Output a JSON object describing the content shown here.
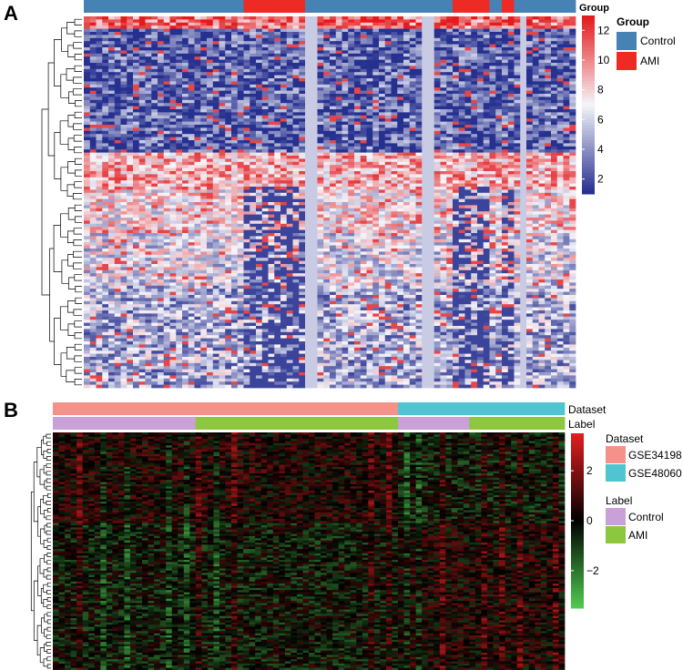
{
  "chart_data": [
    {
      "panel_label": "A",
      "type": "heatmap",
      "annotation_title": "Group",
      "legend_title": "Group",
      "groups": [
        {
          "name": "Control",
          "color": "#4682B4"
        },
        {
          "name": "AMI",
          "color": "#EE2A24"
        }
      ],
      "column_groups": [
        {
          "label": "Control",
          "count": 26
        },
        {
          "label": "AMI",
          "count": 10
        },
        {
          "label": "Control",
          "count": 24
        },
        {
          "label": "AMI",
          "count": 6
        },
        {
          "label": "Control",
          "count": 2
        },
        {
          "label": "AMI",
          "count": 2
        },
        {
          "label": "Control",
          "count": 10
        }
      ],
      "n_rows": 120,
      "gray_columns": [
        36,
        37,
        55,
        56,
        71
      ],
      "colorbar": {
        "range": [
          1,
          13
        ],
        "ticks": [
          2,
          4,
          6,
          8,
          10,
          12
        ],
        "colors": [
          "#26308F",
          "#F5F5FA",
          "#E41A1C"
        ]
      }
    },
    {
      "panel_label": "B",
      "type": "heatmap",
      "annotations": [
        {
          "name": "Dataset",
          "segments": [
            {
              "label": "GSE34198",
              "count": 58,
              "color": "#F4928A"
            },
            {
              "label": "GSE48060",
              "count": 28,
              "color": "#4FC5D1"
            }
          ]
        },
        {
          "name": "Label",
          "segments": [
            {
              "label": "Control",
              "count": 24,
              "color": "#C9A0D8"
            },
            {
              "label": "AMI",
              "count": 34,
              "color": "#8DC63F"
            },
            {
              "label": "Control",
              "count": 12,
              "color": "#C9A0D8"
            },
            {
              "label": "AMI",
              "count": 16,
              "color": "#8DC63F"
            }
          ]
        }
      ],
      "legend": [
        {
          "title": "Dataset",
          "items": [
            {
              "name": "GSE34198",
              "color": "#F4928A"
            },
            {
              "name": "GSE48060",
              "color": "#4FC5D1"
            }
          ]
        },
        {
          "title": "Label",
          "items": [
            {
              "name": "Control",
              "color": "#C9A0D8"
            },
            {
              "name": "AMI",
              "color": "#8DC63F"
            }
          ]
        }
      ],
      "n_rows": 110,
      "colorbar": {
        "range": [
          -3.5,
          3.5
        ],
        "ticks": [
          {
            "value": 2,
            "label": "2"
          },
          {
            "value": 0,
            "label": "0"
          },
          {
            "value": -2,
            "label": "−2"
          }
        ],
        "colors": [
          "#4EC94E",
          "#000000",
          "#E11E1E"
        ]
      }
    }
  ]
}
